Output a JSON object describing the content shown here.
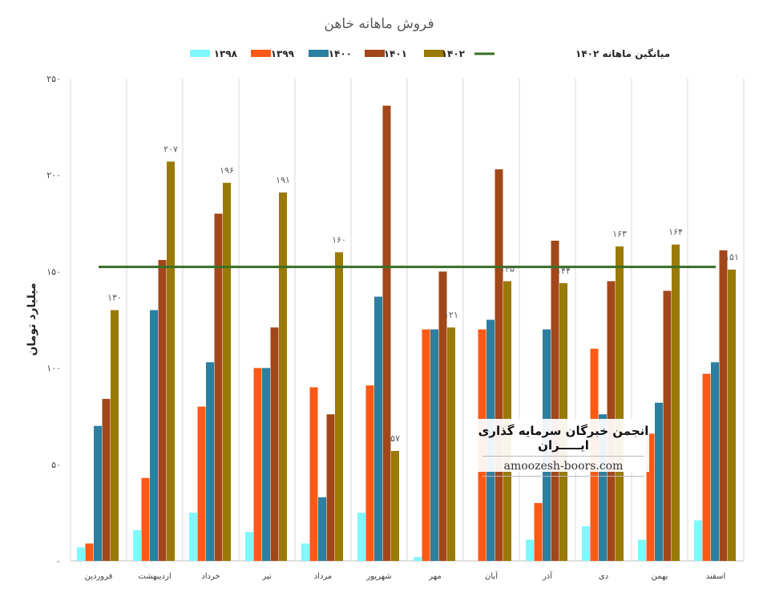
{
  "chart_data": {
    "type": "bar",
    "title": "فروش ماهانه خاهن",
    "ylabel": "میلیارد تومان",
    "ylim": [
      0,
      250
    ],
    "yticks": [
      "۰",
      "۵۰",
      "۱۰۰",
      "۱۵۰",
      "۲۰۰",
      "۲۵۰"
    ],
    "ytick_values": [
      0,
      50,
      100,
      150,
      200,
      250
    ],
    "grid": "vertical",
    "legend_position": "top",
    "categories": [
      "فروردین",
      "اردیبهشت",
      "خرداد",
      "تیر",
      "مرداد",
      "شهریور",
      "مهر",
      "آبان",
      "آذر",
      "دی",
      "بهمن",
      "اسفند"
    ],
    "series": [
      {
        "name": "۱۳۹۸",
        "color": "#7df9ff",
        "values": [
          7,
          16,
          25,
          15,
          9,
          25,
          2,
          null,
          11,
          18,
          11,
          21
        ]
      },
      {
        "name": "۱۳۹۹",
        "color": "#ff5a14",
        "values": [
          9,
          43,
          80,
          100,
          90,
          91,
          120,
          120,
          30,
          110,
          66,
          97
        ]
      },
      {
        "name": "۱۴۰۰",
        "color": "#2b7fa0",
        "values": [
          70,
          130,
          103,
          100,
          33,
          137,
          120,
          125,
          120,
          76,
          82,
          103
        ]
      },
      {
        "name": "۱۴۰۱",
        "color": "#a2471a",
        "values": [
          84,
          156,
          180,
          121,
          76,
          236,
          150,
          203,
          166,
          145,
          140,
          161
        ]
      },
      {
        "name": "۱۴۰۲",
        "color": "#9a7a06",
        "values": [
          130,
          207,
          196,
          191,
          160,
          57,
          121,
          145,
          144,
          163,
          164,
          151
        ]
      }
    ],
    "data_labels_series": "۱۴۰۲",
    "data_labels": [
      "۱۳۰",
      "۲۰۷",
      "۱۹۶",
      "۱۹۱",
      "۱۶۰",
      "۵۷",
      "۱۲۱",
      "۱۴۵",
      "۱۴۴",
      "۱۶۳",
      "۱۶۴",
      "۱۵۱"
    ],
    "average_line": {
      "name": "میانگین ماهانه ۱۴۰۲",
      "value": 152.4,
      "color": "#3a6e26"
    }
  },
  "watermark": {
    "title": "انجمن خبرگان سرمایه گذاری ایـــــران",
    "url": "amoozesh-boors.com"
  }
}
